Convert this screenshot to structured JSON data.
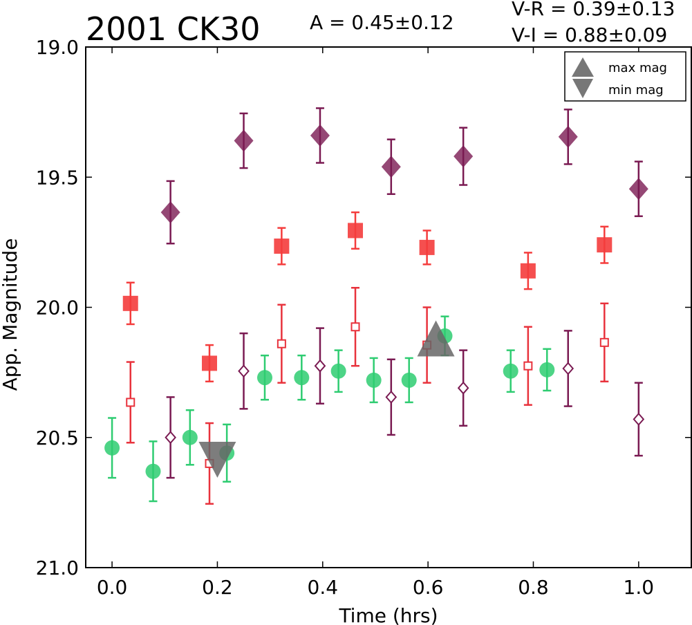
{
  "chart_data": {
    "type": "scatter",
    "title": "2001 CK30",
    "amplitude_text": "A  = 0.45±0.12",
    "color_text": [
      "V-R = 0.39±0.13",
      "V-I  = 0.88±0.09"
    ],
    "xlabel": "Time (hrs)",
    "ylabel": "App. Magnitude",
    "xlim": [
      -0.05,
      1.1
    ],
    "ylim": [
      21.0,
      19.0
    ],
    "y_inverted": true,
    "xticks": [
      "0.0",
      "0.2",
      "0.4",
      "0.6",
      "0.8",
      "1.0"
    ],
    "xtick_values": [
      0.0,
      0.2,
      0.4,
      0.6,
      0.8,
      1.0
    ],
    "yticks": [
      "19.0",
      "19.5",
      "20.0",
      "20.5",
      "21.0"
    ],
    "ytick_values": [
      19.0,
      19.5,
      20.0,
      20.5,
      21.0
    ],
    "grid": false,
    "legend_position": "top-right",
    "legend": [
      {
        "label": "max mag",
        "marker": "triangle-up"
      },
      {
        "label": "min mag",
        "marker": "triangle-down"
      }
    ],
    "series": [
      {
        "marker": "diamond-filled",
        "color": "#7a1a52",
        "points": [
          {
            "x": 0.111,
            "y": 19.635,
            "err": 0.12
          },
          {
            "x": 0.25,
            "y": 19.36,
            "err": 0.105
          },
          {
            "x": 0.395,
            "y": 19.34,
            "err": 0.105
          },
          {
            "x": 0.53,
            "y": 19.46,
            "err": 0.105
          },
          {
            "x": 0.667,
            "y": 19.42,
            "err": 0.11
          },
          {
            "x": 0.866,
            "y": 19.345,
            "err": 0.105
          },
          {
            "x": 1.0,
            "y": 19.545,
            "err": 0.105
          }
        ]
      },
      {
        "marker": "square-filled",
        "color": "#f43c3c",
        "points": [
          {
            "x": 0.035,
            "y": 19.985,
            "err": 0.08
          },
          {
            "x": 0.185,
            "y": 20.215,
            "err": 0.07
          },
          {
            "x": 0.322,
            "y": 19.765,
            "err": 0.07
          },
          {
            "x": 0.462,
            "y": 19.705,
            "err": 0.07
          },
          {
            "x": 0.598,
            "y": 19.77,
            "err": 0.065
          },
          {
            "x": 0.79,
            "y": 19.86,
            "err": 0.07
          },
          {
            "x": 0.935,
            "y": 19.76,
            "err": 0.07
          }
        ]
      },
      {
        "marker": "square-open",
        "color": "#e8323c",
        "points": [
          {
            "x": 0.035,
            "y": 20.365,
            "err": 0.155
          },
          {
            "x": 0.185,
            "y": 20.6,
            "err": 0.155
          },
          {
            "x": 0.322,
            "y": 20.14,
            "err": 0.15
          },
          {
            "x": 0.462,
            "y": 20.075,
            "err": 0.15
          },
          {
            "x": 0.598,
            "y": 20.145,
            "err": 0.145
          },
          {
            "x": 0.79,
            "y": 20.225,
            "err": 0.15
          },
          {
            "x": 0.935,
            "y": 20.135,
            "err": 0.15
          }
        ]
      },
      {
        "marker": "diamond-open",
        "color": "#7a1a52",
        "points": [
          {
            "x": 0.111,
            "y": 20.5,
            "err": 0.155
          },
          {
            "x": 0.25,
            "y": 20.245,
            "err": 0.145
          },
          {
            "x": 0.395,
            "y": 20.225,
            "err": 0.145
          },
          {
            "x": 0.53,
            "y": 20.345,
            "err": 0.145
          },
          {
            "x": 0.667,
            "y": 20.31,
            "err": 0.145
          },
          {
            "x": 0.866,
            "y": 20.235,
            "err": 0.145
          },
          {
            "x": 1.0,
            "y": 20.43,
            "err": 0.14
          }
        ]
      },
      {
        "marker": "circle-filled",
        "color": "#2ecc71",
        "points": [
          {
            "x": 0.0,
            "y": 20.54,
            "err": 0.115
          },
          {
            "x": 0.078,
            "y": 20.63,
            "err": 0.115
          },
          {
            "x": 0.148,
            "y": 20.5,
            "err": 0.105
          },
          {
            "x": 0.218,
            "y": 20.56,
            "err": 0.11
          },
          {
            "x": 0.29,
            "y": 20.27,
            "err": 0.085
          },
          {
            "x": 0.36,
            "y": 20.27,
            "err": 0.085
          },
          {
            "x": 0.43,
            "y": 20.245,
            "err": 0.08
          },
          {
            "x": 0.497,
            "y": 20.28,
            "err": 0.085
          },
          {
            "x": 0.564,
            "y": 20.28,
            "err": 0.085
          },
          {
            "x": 0.632,
            "y": 20.11,
            "err": 0.075
          },
          {
            "x": 0.757,
            "y": 20.245,
            "err": 0.08
          },
          {
            "x": 0.826,
            "y": 20.24,
            "err": 0.08
          }
        ]
      }
    ],
    "markers_extrema": [
      {
        "type": "min mag",
        "x": 0.2,
        "y": 20.575,
        "marker": "triangle-down",
        "color": "#666666"
      },
      {
        "type": "max mag",
        "x": 0.615,
        "y": 20.13,
        "marker": "triangle-up",
        "color": "#666666"
      }
    ]
  }
}
